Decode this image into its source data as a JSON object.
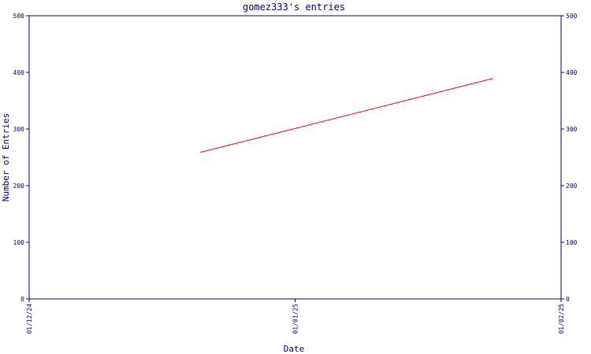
{
  "chart_data": {
    "type": "line",
    "title": "gomez333's entries",
    "xlabel": "Date",
    "ylabel": "Number of Entries",
    "x_ticks": [
      "01/12/24",
      "01/01/25",
      "01/02/25"
    ],
    "y_ticks": [
      "0",
      "100",
      "200",
      "300",
      "400",
      "500"
    ],
    "ylim": [
      0,
      500
    ],
    "xlim": [
      "2024-12-01",
      "2025-02-01"
    ],
    "y_axes": [
      "left",
      "right"
    ],
    "grid": false,
    "series": [
      {
        "color": "#ff0000",
        "points": [
          {
            "x": "2024-12-21",
            "y": 259
          },
          {
            "x": "2025-01-24",
            "y": 389
          }
        ]
      }
    ]
  },
  "colors": {
    "axis": "#000080",
    "text": "#000080",
    "line": "#ff0000",
    "background": "#ffffff"
  }
}
